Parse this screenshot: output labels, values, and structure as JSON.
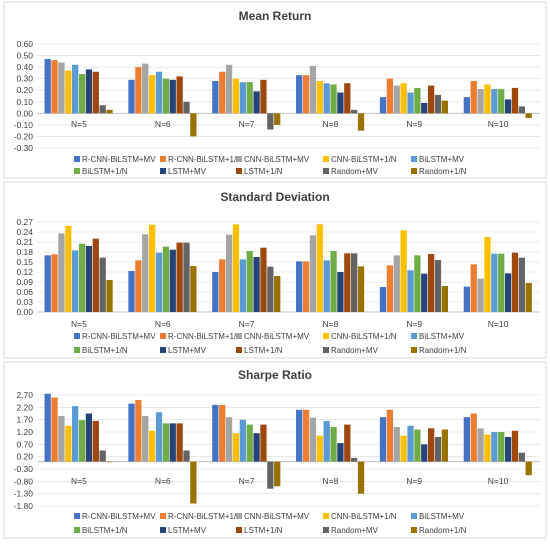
{
  "colors": {
    "series": [
      "#4472C4",
      "#ED7D31",
      "#A5A5A5",
      "#FFC000",
      "#5B9BD5",
      "#70AD47",
      "#264478",
      "#9E480E",
      "#636363",
      "#997300"
    ],
    "grid": "#d9d9d9",
    "axis": "#bfbfbf",
    "text": "#404040",
    "title": "#404040"
  },
  "chart_data": [
    {
      "type": "bar",
      "title": "Mean Return",
      "categories": [
        "N=5",
        "N=6",
        "N=7",
        "N=8",
        "N=9",
        "N=10"
      ],
      "ylim": [
        -0.3,
        0.6
      ],
      "yticks": [
        0.6,
        0.5,
        0.4,
        0.3,
        0.2,
        0.1,
        0.0,
        -0.1,
        -0.2,
        -0.3
      ],
      "yticklabels": [
        "0.60",
        "0.50",
        "0.40",
        "0.30",
        "0.20",
        "0.10",
        "0.00",
        "-0.10",
        "-0.20",
        "-0.30"
      ],
      "grid": true,
      "legend_position": "bottom",
      "series": [
        {
          "name": "R-CNN-BiLSTM+MV",
          "values": [
            0.47,
            0.29,
            0.28,
            0.33,
            0.14,
            0.14
          ]
        },
        {
          "name": "R-CNN-BiLSTM+1/N",
          "values": [
            0.46,
            0.4,
            0.36,
            0.33,
            0.3,
            0.28
          ]
        },
        {
          "name": "CNN-BiLSTM+MV",
          "values": [
            0.44,
            0.43,
            0.42,
            0.41,
            0.24,
            0.21
          ]
        },
        {
          "name": "CNN-BiLSTM+1/N",
          "values": [
            0.37,
            0.33,
            0.3,
            0.28,
            0.26,
            0.25
          ]
        },
        {
          "name": "BiLSTM+MV",
          "values": [
            0.42,
            0.36,
            0.27,
            0.26,
            0.18,
            0.21
          ]
        },
        {
          "name": "BiLSTM+1/N",
          "values": [
            0.34,
            0.3,
            0.27,
            0.25,
            0.22,
            0.21
          ]
        },
        {
          "name": "LSTM+MV",
          "values": [
            0.38,
            0.29,
            0.19,
            0.18,
            0.09,
            0.12
          ]
        },
        {
          "name": "LSTM+1/N",
          "values": [
            0.36,
            0.32,
            0.29,
            0.26,
            0.24,
            0.22
          ]
        },
        {
          "name": "Random+MV",
          "values": [
            0.07,
            0.1,
            -0.14,
            0.03,
            0.16,
            0.06
          ]
        },
        {
          "name": "Random+1/N",
          "values": [
            0.03,
            -0.2,
            -0.1,
            -0.15,
            0.11,
            -0.04
          ]
        }
      ]
    },
    {
      "type": "bar",
      "title": "Standard Deviation",
      "categories": [
        "N=5",
        "N=6",
        "N=7",
        "N=8",
        "N=9",
        "N=10"
      ],
      "ylim": [
        0.0,
        0.27
      ],
      "yticks": [
        0.27,
        0.24,
        0.21,
        0.18,
        0.15,
        0.12,
        0.09,
        0.06,
        0.03,
        0.0
      ],
      "yticklabels": [
        "0.27",
        "0.24",
        "0.21",
        "0.18",
        "0.15",
        "0.12",
        "0.09",
        "0.06",
        "0.03",
        "0.00"
      ],
      "grid": true,
      "legend_position": "bottom",
      "series": [
        {
          "name": "R-CNN-BiLSTM+MV",
          "values": [
            0.17,
            0.123,
            0.12,
            0.152,
            0.075,
            0.076
          ]
        },
        {
          "name": "R-CNN-BiLSTM+1/N",
          "values": [
            0.173,
            0.155,
            0.158,
            0.152,
            0.14,
            0.143
          ]
        },
        {
          "name": "CNN-BiLSTM+MV",
          "values": [
            0.236,
            0.233,
            0.232,
            0.23,
            0.17,
            0.1
          ]
        },
        {
          "name": "CNN-BiLSTM+1/N",
          "values": [
            0.258,
            0.262,
            0.263,
            0.263,
            0.245,
            0.225
          ]
        },
        {
          "name": "BiLSTM+MV",
          "values": [
            0.185,
            0.178,
            0.158,
            0.155,
            0.125,
            0.175
          ]
        },
        {
          "name": "BiLSTM+1/N",
          "values": [
            0.205,
            0.196,
            0.183,
            0.183,
            0.17,
            0.175
          ]
        },
        {
          "name": "LSTM+MV",
          "values": [
            0.198,
            0.187,
            0.165,
            0.12,
            0.115,
            0.116
          ]
        },
        {
          "name": "LSTM+1/N",
          "values": [
            0.22,
            0.208,
            0.193,
            0.176,
            0.174,
            0.178
          ]
        },
        {
          "name": "Random+MV",
          "values": [
            0.163,
            0.208,
            0.136,
            0.176,
            0.156,
            0.163
          ]
        },
        {
          "name": "Random+1/N",
          "values": [
            0.096,
            0.138,
            0.108,
            0.137,
            0.078,
            0.087
          ]
        }
      ]
    },
    {
      "type": "bar",
      "title": "Sharpe Ratio",
      "categories": [
        "N=5",
        "N=6",
        "N=7",
        "N=8",
        "N=9",
        "N=10"
      ],
      "ylim": [
        -1.8,
        2.7
      ],
      "yticks": [
        2.7,
        2.2,
        1.7,
        1.2,
        0.7,
        0.2,
        -0.3,
        -0.8,
        -1.3,
        -1.8
      ],
      "yticklabels": [
        "2.70",
        "2.20",
        "1.70",
        "1.20",
        "0.70",
        "0.20",
        "-0.30",
        "-0.80",
        "-1.30",
        "-1.80"
      ],
      "grid": true,
      "legend_position": "bottom",
      "series": [
        {
          "name": "R-CNN-BiLSTM+MV",
          "values": [
            2.75,
            2.35,
            2.3,
            2.1,
            1.8,
            1.8
          ]
        },
        {
          "name": "R-CNN-BiLSTM+1/N",
          "values": [
            2.6,
            2.5,
            2.3,
            2.1,
            2.1,
            1.95
          ]
        },
        {
          "name": "CNN-BiLSTM+MV",
          "values": [
            1.85,
            1.85,
            1.8,
            1.78,
            1.4,
            1.35
          ]
        },
        {
          "name": "CNN-BiLSTM+1/N",
          "values": [
            1.45,
            1.25,
            1.15,
            1.05,
            1.05,
            1.1
          ]
        },
        {
          "name": "BiLSTM+MV",
          "values": [
            2.25,
            2.0,
            1.7,
            1.65,
            1.45,
            1.2
          ]
        },
        {
          "name": "BiLSTM+1/N",
          "values": [
            1.68,
            1.55,
            1.5,
            1.4,
            1.3,
            1.2
          ]
        },
        {
          "name": "LSTM+MV",
          "values": [
            1.95,
            1.55,
            1.15,
            0.75,
            0.7,
            1.0
          ]
        },
        {
          "name": "LSTM+1/N",
          "values": [
            1.65,
            1.55,
            1.5,
            1.5,
            1.35,
            1.25
          ]
        },
        {
          "name": "Random+MV",
          "values": [
            0.45,
            0.45,
            -1.1,
            0.15,
            1.0,
            0.36
          ]
        },
        {
          "name": "Random+1/N",
          "values": [
            0.0,
            -1.7,
            -1.0,
            -1.3,
            1.3,
            -0.55
          ]
        }
      ]
    }
  ]
}
